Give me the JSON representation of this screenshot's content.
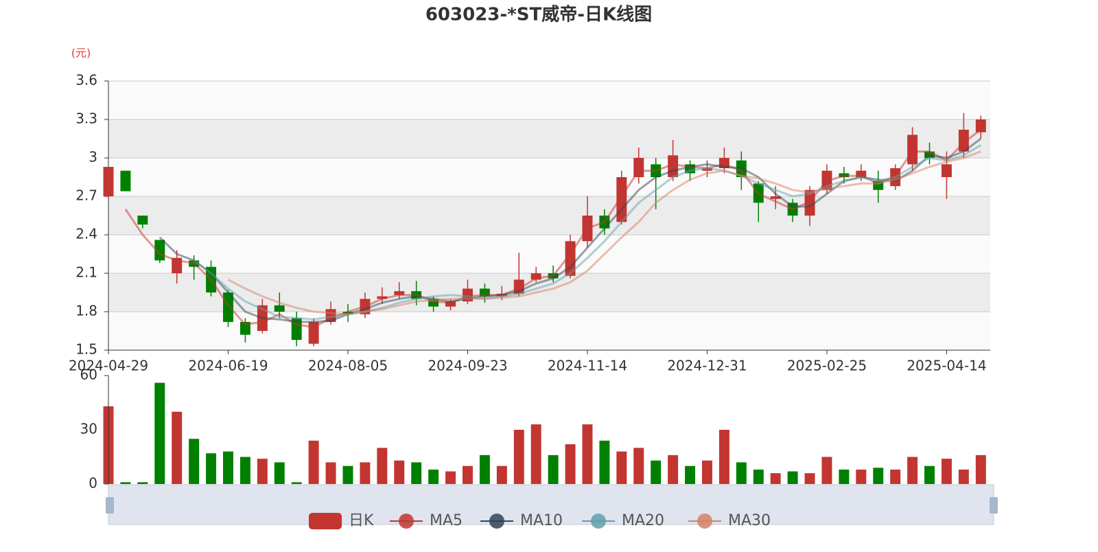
{
  "chart_data": [
    {
      "type": "candlestick",
      "title": "603023-*ST威帝-日K线图",
      "y_unit": "(元)",
      "categories": [
        "2024-04-29",
        null,
        null,
        null,
        null,
        null,
        null,
        "2024-06-19",
        null,
        null,
        null,
        null,
        null,
        null,
        "2024-08-05",
        null,
        null,
        null,
        null,
        null,
        null,
        "2024-09-23",
        null,
        null,
        null,
        null,
        null,
        null,
        "2024-11-14",
        null,
        null,
        null,
        null,
        null,
        null,
        "2024-12-31",
        null,
        null,
        null,
        null,
        null,
        null,
        "2025-02-25",
        null,
        null,
        null,
        null,
        null,
        null,
        "2025-04-14",
        null,
        null
      ],
      "ylim": [
        1.5,
        3.6
      ],
      "yticks": [
        1.5,
        1.8,
        2.1,
        2.4,
        2.7,
        3,
        3.3,
        3.6
      ],
      "split_area": true,
      "series": [
        {
          "name": "日K",
          "color": "#c23531",
          "down_color": "#008000",
          "open": [
            2.7,
            2.9,
            2.55,
            2.36,
            2.1,
            2.2,
            2.15,
            1.95,
            1.72,
            1.65,
            1.85,
            1.75,
            1.55,
            1.72,
            1.8,
            1.78,
            1.9,
            1.93,
            1.96,
            1.9,
            1.84,
            1.88,
            1.98,
            1.92,
            1.94,
            2.05,
            2.1,
            2.08,
            2.35,
            2.55,
            2.5,
            2.85,
            2.95,
            2.85,
            2.95,
            2.9,
            2.92,
            2.98,
            2.8,
            2.68,
            2.65,
            2.55,
            2.75,
            2.88,
            2.85,
            2.82,
            2.78,
            2.95,
            3.05,
            2.85,
            3.05,
            3.2
          ],
          "close": [
            2.93,
            2.74,
            2.48,
            2.2,
            2.22,
            2.15,
            1.95,
            1.72,
            1.62,
            1.85,
            1.8,
            1.58,
            1.72,
            1.82,
            1.78,
            1.9,
            1.92,
            1.96,
            1.9,
            1.84,
            1.88,
            1.98,
            1.92,
            1.94,
            2.05,
            2.1,
            2.06,
            2.35,
            2.55,
            2.45,
            2.85,
            3.0,
            2.85,
            3.02,
            2.88,
            2.92,
            3.0,
            2.85,
            2.65,
            2.7,
            2.55,
            2.75,
            2.9,
            2.85,
            2.9,
            2.75,
            2.92,
            3.18,
            3.0,
            2.95,
            3.22,
            3.3
          ],
          "low": [
            2.68,
            2.74,
            2.45,
            2.18,
            2.02,
            2.05,
            1.92,
            1.68,
            1.56,
            1.63,
            1.75,
            1.53,
            1.53,
            1.7,
            1.72,
            1.75,
            1.86,
            1.9,
            1.85,
            1.8,
            1.81,
            1.86,
            1.87,
            1.89,
            1.92,
            2.03,
            2.03,
            2.06,
            2.3,
            2.4,
            2.48,
            2.8,
            2.6,
            2.82,
            2.82,
            2.85,
            2.88,
            2.75,
            2.5,
            2.6,
            2.5,
            2.47,
            2.72,
            2.8,
            2.82,
            2.65,
            2.75,
            2.9,
            2.95,
            2.68,
            3.0,
            3.15
          ],
          "high": [
            2.93,
            2.9,
            2.55,
            2.36,
            2.28,
            2.24,
            2.2,
            1.97,
            1.75,
            1.9,
            1.95,
            1.8,
            1.75,
            1.88,
            1.86,
            1.95,
            1.99,
            2.03,
            2.04,
            1.92,
            1.9,
            2.05,
            2.02,
            2.0,
            2.26,
            2.15,
            2.16,
            2.4,
            2.7,
            2.6,
            2.9,
            3.08,
            3.0,
            3.14,
            2.98,
            2.98,
            3.08,
            3.05,
            2.82,
            2.78,
            2.68,
            2.78,
            2.95,
            2.93,
            2.95,
            2.9,
            2.95,
            3.24,
            3.12,
            3.05,
            3.35,
            3.33
          ]
        },
        {
          "name": "MA5",
          "color": "#c23531",
          "values": [
            null,
            2.6,
            2.4,
            2.25,
            2.2,
            2.18,
            2.05,
            1.85,
            1.7,
            1.72,
            1.78,
            1.7,
            1.68,
            1.75,
            1.8,
            1.84,
            1.9,
            1.93,
            1.93,
            1.88,
            1.87,
            1.92,
            1.93,
            1.93,
            1.98,
            2.06,
            2.08,
            2.25,
            2.45,
            2.5,
            2.7,
            2.9,
            2.9,
            2.95,
            2.93,
            2.92,
            2.95,
            2.9,
            2.72,
            2.66,
            2.6,
            2.66,
            2.82,
            2.86,
            2.86,
            2.8,
            2.86,
            3.05,
            3.05,
            2.98,
            3.12,
            3.22
          ]
        },
        {
          "name": "MA10",
          "color": "#2f4554",
          "values": [
            null,
            null,
            null,
            2.38,
            2.25,
            2.2,
            2.1,
            1.95,
            1.8,
            1.75,
            1.74,
            1.72,
            1.72,
            1.73,
            1.78,
            1.82,
            1.87,
            1.9,
            1.92,
            1.9,
            1.88,
            1.9,
            1.92,
            1.93,
            1.96,
            2.02,
            2.06,
            2.15,
            2.3,
            2.45,
            2.6,
            2.75,
            2.85,
            2.9,
            2.93,
            2.95,
            2.93,
            2.92,
            2.85,
            2.72,
            2.62,
            2.62,
            2.72,
            2.82,
            2.85,
            2.83,
            2.82,
            2.9,
            3.02,
            3.0,
            3.05,
            3.15
          ]
        },
        {
          "name": "MA20",
          "color": "#61a0a8",
          "values": [
            null,
            null,
            null,
            null,
            null,
            2.2,
            2.1,
            1.98,
            1.88,
            1.82,
            1.76,
            1.75,
            1.74,
            1.76,
            1.78,
            1.8,
            1.83,
            1.87,
            1.9,
            1.92,
            1.93,
            1.92,
            1.9,
            1.92,
            1.94,
            1.98,
            2.02,
            2.1,
            2.22,
            2.35,
            2.5,
            2.65,
            2.75,
            2.85,
            2.9,
            2.92,
            2.9,
            2.86,
            2.8,
            2.75,
            2.7,
            2.72,
            2.78,
            2.82,
            2.85,
            2.82,
            2.85,
            2.93,
            3.0,
            2.98,
            3.02,
            3.1
          ]
        },
        {
          "name": "MA30",
          "color": "#d48265",
          "values": [
            null,
            null,
            null,
            null,
            null,
            null,
            null,
            2.05,
            1.98,
            1.92,
            1.87,
            1.83,
            1.8,
            1.79,
            1.78,
            1.8,
            1.82,
            1.85,
            1.88,
            1.89,
            1.9,
            1.9,
            1.9,
            1.91,
            1.92,
            1.95,
            1.98,
            2.03,
            2.12,
            2.25,
            2.38,
            2.5,
            2.65,
            2.75,
            2.83,
            2.88,
            2.9,
            2.86,
            2.84,
            2.8,
            2.75,
            2.73,
            2.76,
            2.78,
            2.8,
            2.8,
            2.83,
            2.88,
            2.93,
            2.97,
            3.0,
            3.05
          ]
        }
      ]
    },
    {
      "type": "bar",
      "values": [
        43,
        1,
        1,
        56,
        40,
        25,
        17,
        18,
        15,
        14,
        12,
        1,
        24,
        12,
        10,
        12,
        20,
        13,
        12,
        8,
        7,
        10,
        16,
        10,
        30,
        33,
        16,
        22,
        33,
        24,
        18,
        20,
        13,
        16,
        10,
        13,
        30,
        12,
        8,
        6,
        7,
        6,
        15,
        8,
        8,
        9,
        8,
        15,
        10,
        14,
        8,
        16
      ],
      "ylim": [
        0,
        60
      ],
      "yticks": [
        0,
        30,
        60
      ]
    }
  ]
}
